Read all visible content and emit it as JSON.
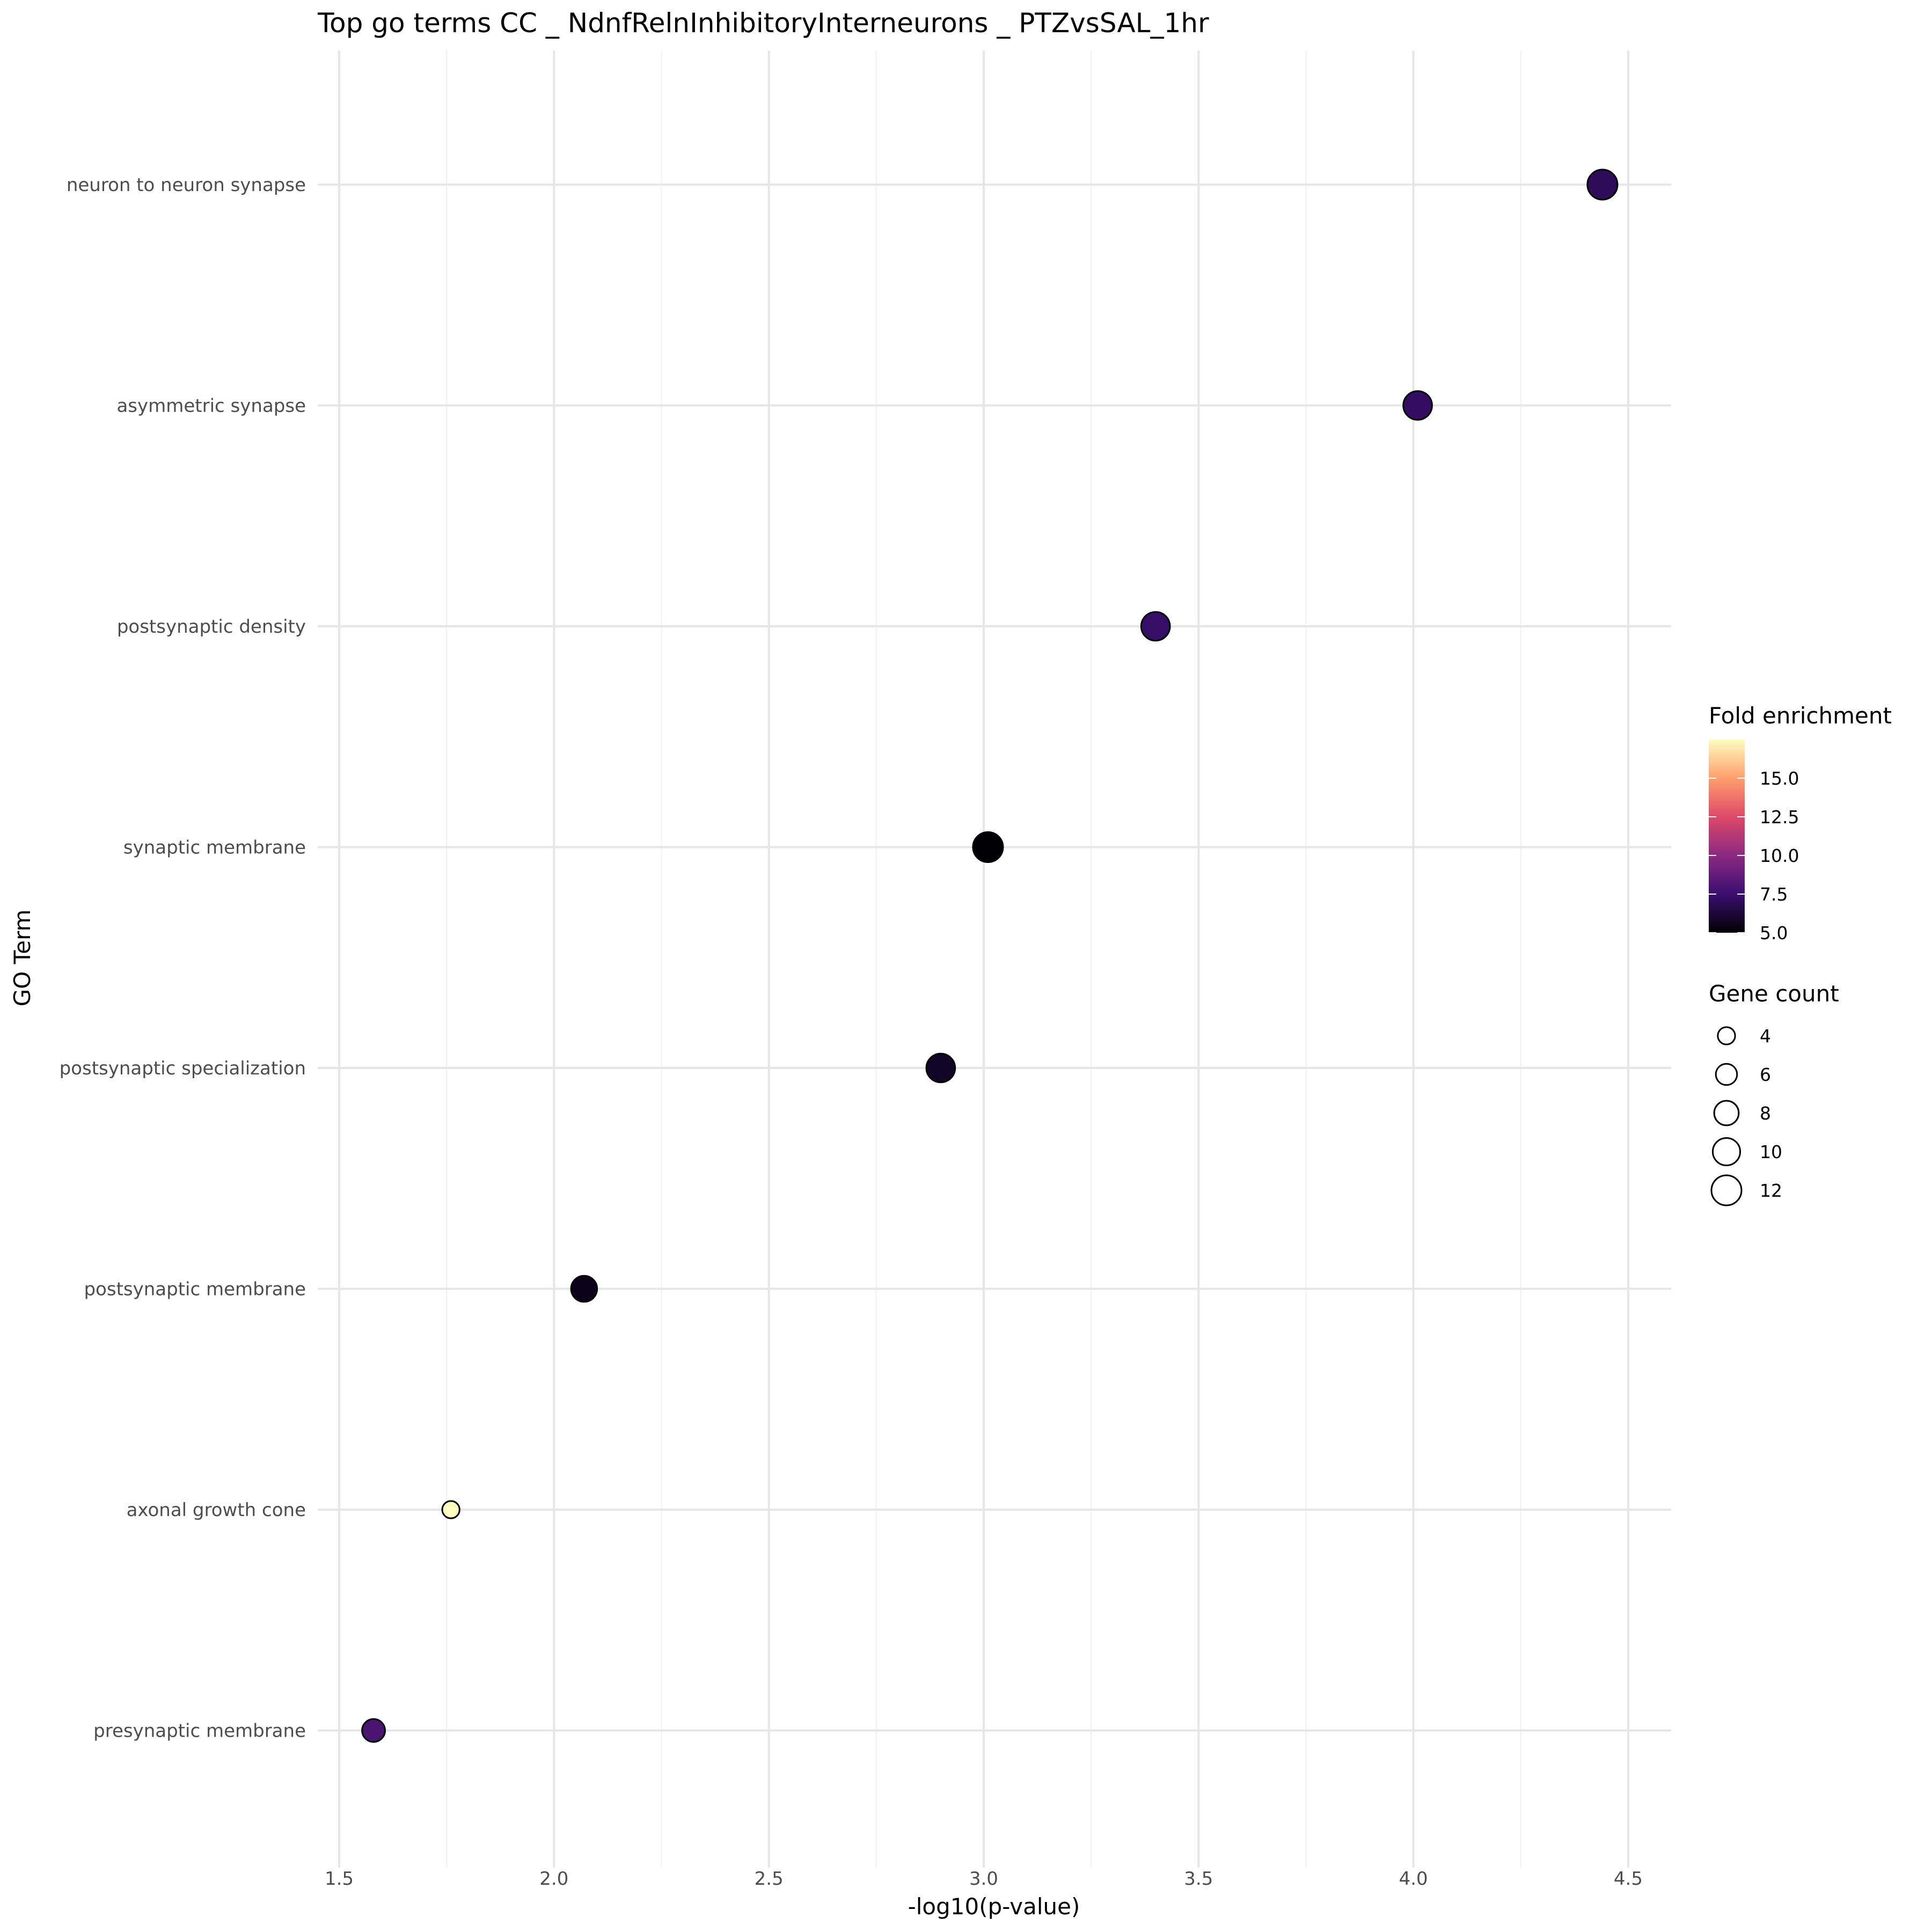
{
  "chart_data": {
    "type": "scatter",
    "title": "Top go terms  CC _ NdnfRelnInhibitoryInterneurons _ PTZvsSAL_1hr",
    "xlabel": "-log10(p-value)",
    "ylabel": "GO Term",
    "xlim": [
      1.45,
      4.6
    ],
    "xticks": [
      "1.5",
      "2.0",
      "2.5",
      "3.0",
      "3.5",
      "4.0",
      "4.5"
    ],
    "grid": true,
    "categories": [
      "neuron to neuron synapse",
      "asymmetric synapse",
      "postsynaptic density",
      "synaptic membrane",
      "postsynaptic specialization",
      "postsynaptic membrane",
      "axonal growth cone",
      "presynaptic membrane"
    ],
    "points": [
      {
        "term": "neuron to neuron synapse",
        "x": 4.44,
        "gene_count": 12,
        "fold_enrichment": 7.0
      },
      {
        "term": "asymmetric synapse",
        "x": 4.01,
        "gene_count": 11,
        "fold_enrichment": 7.2
      },
      {
        "term": "postsynaptic density",
        "x": 3.4,
        "gene_count": 11,
        "fold_enrichment": 7.3
      },
      {
        "term": "synaptic membrane",
        "x": 3.01,
        "gene_count": 12,
        "fold_enrichment": 5.0
      },
      {
        "term": "postsynaptic specialization",
        "x": 2.9,
        "gene_count": 11,
        "fold_enrichment": 5.8
      },
      {
        "term": "postsynaptic membrane",
        "x": 2.07,
        "gene_count": 9,
        "fold_enrichment": 5.5
      },
      {
        "term": "axonal growth cone",
        "x": 1.76,
        "gene_count": 4,
        "fold_enrichment": 17.5
      },
      {
        "term": "presynaptic membrane",
        "x": 1.58,
        "gene_count": 7,
        "fold_enrichment": 8.0
      }
    ],
    "legend": {
      "placement": "right",
      "color": {
        "title": "Fold enrichment",
        "ticks": [
          "15.0",
          "12.5",
          "10.0",
          "7.5",
          "5.0"
        ],
        "tick_values": [
          15,
          12.5,
          10,
          7.5,
          5
        ],
        "range": [
          5,
          17.5
        ],
        "palette": [
          "#000004",
          "#3b0f70",
          "#8c2981",
          "#de4968",
          "#fe9f6d",
          "#fcfdbf"
        ]
      },
      "size": {
        "title": "Gene count",
        "entries": [
          "4",
          "6",
          "8",
          "10",
          "12"
        ],
        "values": [
          4,
          6,
          8,
          10,
          12
        ]
      }
    }
  }
}
